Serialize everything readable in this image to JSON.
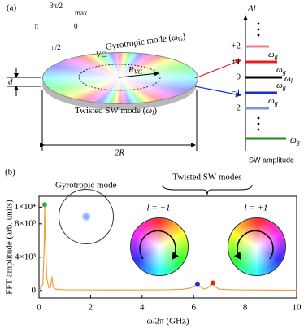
{
  "panel_a": {
    "label": "(a)",
    "wheel": {
      "top": "3π/2",
      "max": "max",
      "left": "π",
      "right": "0",
      "bottom": "π/2"
    },
    "gyrotropic": {
      "text": "Gyrotropic mode (",
      "base": "ω",
      "sub": "G",
      "close": ")"
    },
    "vc": "VC",
    "rvc": {
      "base": "R",
      "sub": "VC"
    },
    "d": "d",
    "twisted": {
      "text": "Twisted SW mode (",
      "base": "ω",
      "sub": "l",
      "close": ")"
    },
    "diameter": "2R",
    "delta_l": "Δl",
    "levels": [
      "+2",
      "+1",
      "0",
      "−1",
      "−2"
    ],
    "omega_g": {
      "base": "ω",
      "sub": "g"
    },
    "omega_l": {
      "base": "ω",
      "sub": "l"
    },
    "amplitude": "SW amplitude"
  },
  "chart_data": {
    "type": "line",
    "panel_label": "(b)",
    "x_label": "ω/2π (GHz)",
    "y_label": "FFT amplitude (arb. units)",
    "xlim": [
      0,
      10
    ],
    "xticks": [
      0,
      2,
      4,
      6,
      8,
      10
    ],
    "ylim": [
      -900,
      11300
    ],
    "yticks": [
      0,
      {
        "value": 4000,
        "label": "4×10³"
      },
      {
        "value": 8000,
        "label": "8×10³"
      },
      {
        "value": 10000,
        "label": "1×10⁴"
      }
    ],
    "x": [
      0,
      0.15,
      0.2,
      0.22,
      0.25,
      0.3,
      0.38,
      0.45,
      0.5,
      0.55,
      0.65,
      1,
      2,
      3,
      4,
      5,
      5.6,
      5.9,
      6.05,
      6.15,
      6.25,
      6.4,
      6.55,
      6.7,
      6.75,
      6.85,
      7,
      7.5,
      8,
      9,
      10
    ],
    "series": [
      {
        "color": "#f0a040",
        "values": [
          0,
          800,
          5000,
          10300,
          6000,
          1500,
          300,
          400,
          1700,
          400,
          150,
          80,
          60,
          50,
          60,
          80,
          150,
          300,
          600,
          800,
          500,
          150,
          300,
          800,
          900,
          400,
          150,
          80,
          60,
          40,
          30
        ]
      }
    ],
    "markers": {
      "x": [
        0.22,
        6.15,
        6.75
      ],
      "values": [
        10300,
        800,
        900
      ],
      "colors": [
        "#2fb02f",
        "#1a2fd0",
        "#e02020"
      ]
    },
    "annotations": {
      "gyrotropic": "Gyrotropic mode",
      "twisted": "Twisted SW modes",
      "l_minus": "l = −1",
      "l_plus": "l = +1"
    }
  }
}
